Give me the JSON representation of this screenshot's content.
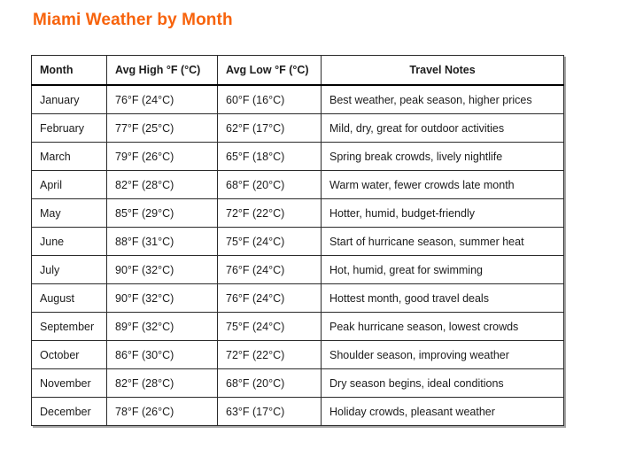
{
  "page": {
    "title": "Miami Weather by Month"
  },
  "colors": {
    "title_accent": "#f7630c",
    "table_border": "#2b2b2b",
    "outer_shadow": "#a6a6a6",
    "text": "#1b1b1b",
    "background": "#ffffff"
  },
  "table": {
    "headers": [
      "Month",
      "Avg High °F (°C)",
      "Avg Low °F (°C)",
      "Travel Notes"
    ],
    "rows": [
      [
        "January",
        "76°F (24°C)",
        "60°F (16°C)",
        "Best weather, peak season, higher prices"
      ],
      [
        "February",
        "77°F (25°C)",
        "62°F (17°C)",
        "Mild, dry, great for outdoor activities"
      ],
      [
        "March",
        "79°F (26°C)",
        "65°F (18°C)",
        "Spring break crowds, lively nightlife"
      ],
      [
        "April",
        "82°F (28°C)",
        "68°F (20°C)",
        "Warm water, fewer crowds late month"
      ],
      [
        "May",
        "85°F (29°C)",
        "72°F (22°C)",
        "Hotter, humid, budget-friendly"
      ],
      [
        "June",
        "88°F (31°C)",
        "75°F (24°C)",
        "Start of hurricane season, summer heat"
      ],
      [
        "July",
        "90°F (32°C)",
        "76°F (24°C)",
        "Hot, humid, great for swimming"
      ],
      [
        "August",
        "90°F (32°C)",
        "76°F (24°C)",
        "Hottest month, good travel deals"
      ],
      [
        "September",
        "89°F (32°C)",
        "75°F (24°C)",
        "Peak hurricane season, lowest crowds"
      ],
      [
        "October",
        "86°F (30°C)",
        "72°F (22°C)",
        "Shoulder season, improving weather"
      ],
      [
        "November",
        "82°F (28°C)",
        "68°F (20°C)",
        "Dry season begins, ideal conditions"
      ],
      [
        "December",
        "78°F (26°C)",
        "63°F (17°C)",
        "Holiday crowds, pleasant weather"
      ]
    ]
  }
}
